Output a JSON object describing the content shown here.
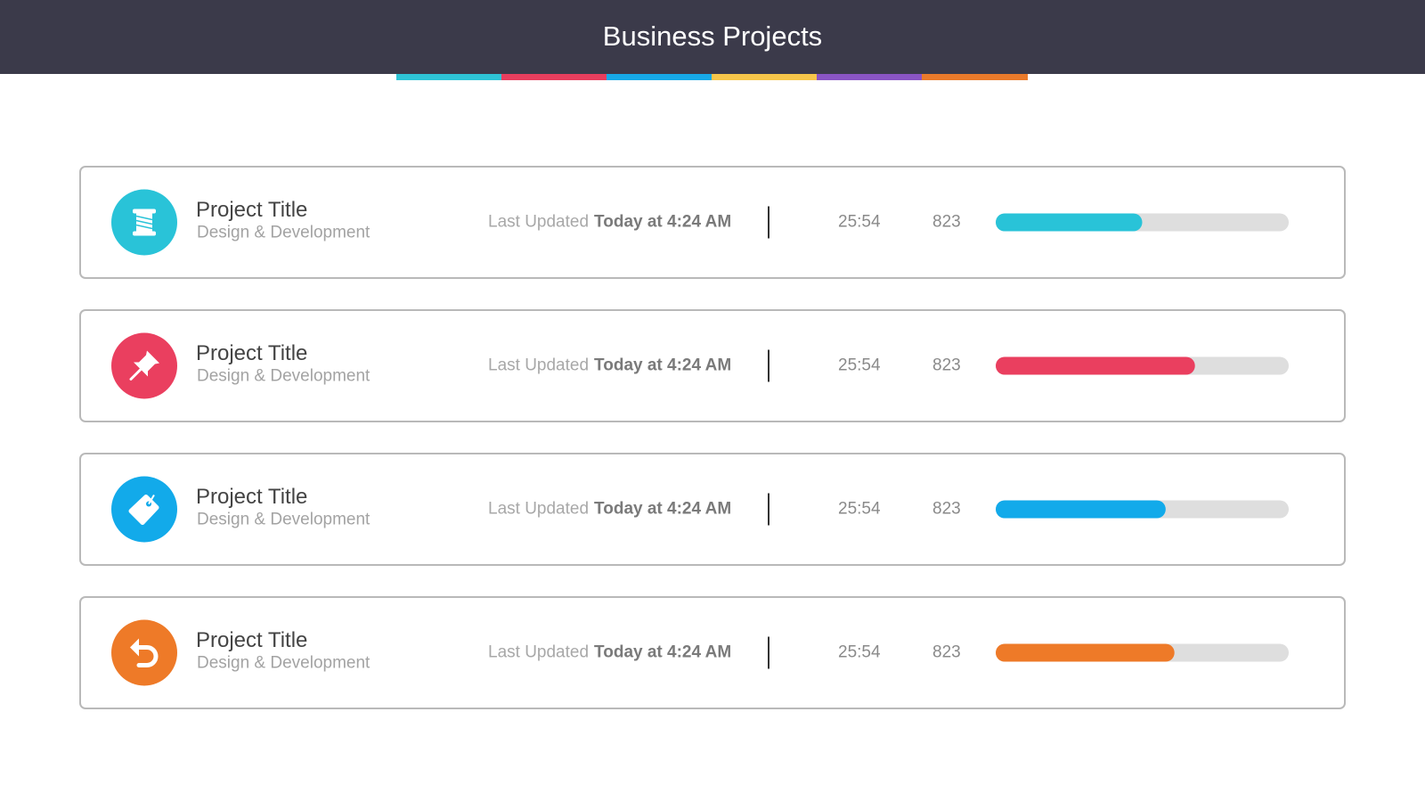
{
  "header": {
    "title": "Business Projects"
  },
  "progress_range": [
    0,
    100
  ],
  "projects": [
    {
      "title": "Project Title",
      "subtitle": "Design & Development",
      "updated_label": "Last Updated",
      "updated_time": "Today at 4:24 AM",
      "time": "25:54",
      "count": 823,
      "progress": 50,
      "color": "#29c3d8"
    },
    {
      "title": "Project Title",
      "subtitle": "Design & Development",
      "updated_label": "Last Updated",
      "updated_time": "Today at 4:24 AM",
      "time": "25:54",
      "count": 823,
      "progress": 68,
      "color": "#ea3f5f"
    },
    {
      "title": "Project Title",
      "subtitle": "Design & Development",
      "updated_label": "Last Updated",
      "updated_time": "Today at 4:24 AM",
      "time": "25:54",
      "count": 823,
      "progress": 58,
      "color": "#12aaea"
    },
    {
      "title": "Project Title",
      "subtitle": "Design & Development",
      "updated_label": "Last Updated",
      "updated_time": "Today at 4:24 AM",
      "time": "25:54",
      "count": 823,
      "progress": 61,
      "color": "#ee7a28"
    }
  ]
}
